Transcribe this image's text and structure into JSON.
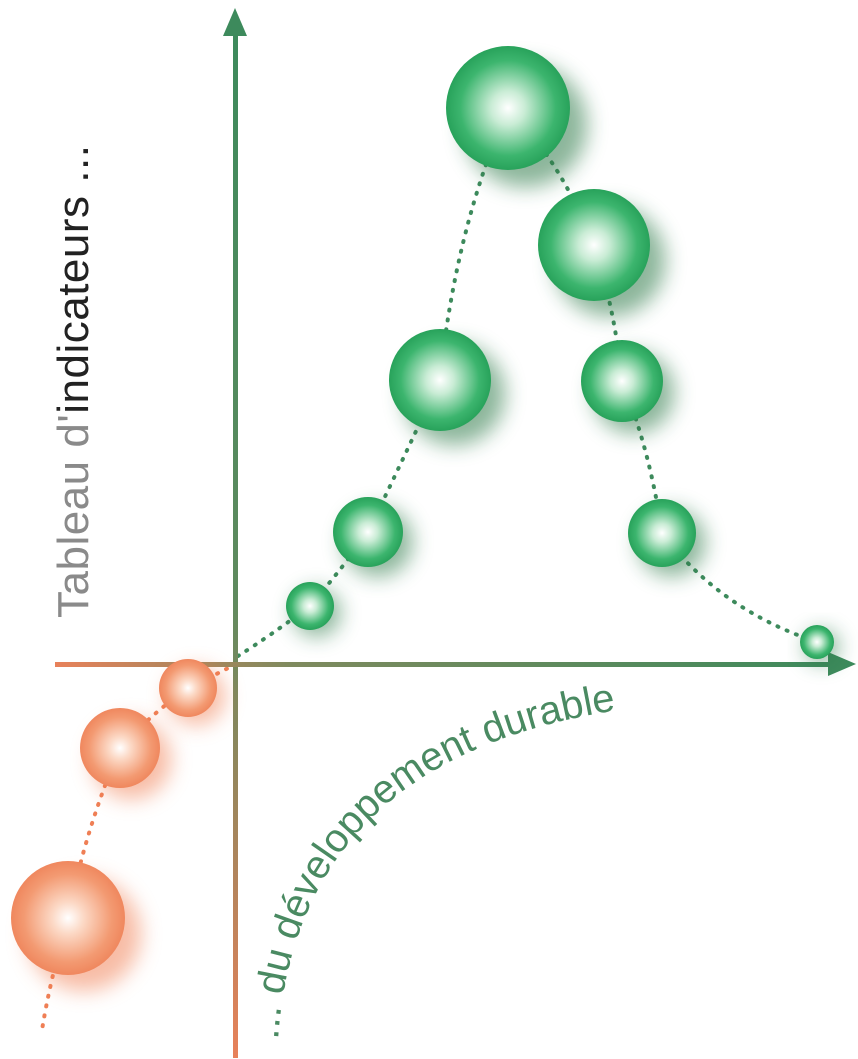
{
  "title_vertical": {
    "part1": "Tableau d'",
    "part2": "indicateurs ..."
  },
  "title_curved": {
    "text": "... du développement durable"
  },
  "colors": {
    "green_axis": "#3d8a5c",
    "orange_axis": "#e8815a",
    "green_bubble": "#2aa55e",
    "orange_bubble": "#f2855a",
    "grey_text": "#8a8a8a",
    "dark_text": "#222222",
    "green_text": "#4a8a62",
    "green_dots": "#3d8a5c",
    "orange_dots": "#ef7f55"
  },
  "bubbles": {
    "green": [
      {
        "id": "g1"
      },
      {
        "id": "g2"
      },
      {
        "id": "g3"
      },
      {
        "id": "g4"
      },
      {
        "id": "g5"
      },
      {
        "id": "g6"
      },
      {
        "id": "g7"
      },
      {
        "id": "g8"
      }
    ],
    "orange": [
      {
        "id": "o1"
      },
      {
        "id": "o2"
      },
      {
        "id": "o3"
      }
    ]
  }
}
